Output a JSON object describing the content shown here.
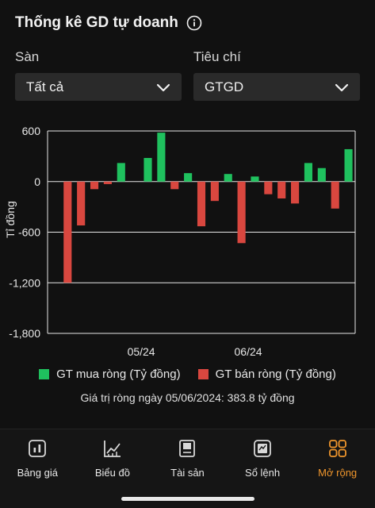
{
  "header": {
    "title": "Thống kê GD tự doanh"
  },
  "filters": {
    "exchange_label": "Sàn",
    "exchange_value": "Tất cả",
    "criteria_label": "Tiêu chí",
    "criteria_value": "GTGD"
  },
  "chart_data": {
    "type": "bar",
    "ylabel": "Tỉ đồng",
    "ylim": [
      -1800,
      600
    ],
    "yticks": [
      "600",
      "0",
      "-600",
      "-1,200",
      "-1,800"
    ],
    "ytick_values": [
      600,
      0,
      -600,
      -1200,
      -1800
    ],
    "xtick_labels": [
      {
        "label": "05/24",
        "index": 6.5
      },
      {
        "label": "06/24",
        "index": 14.5
      }
    ],
    "values": [
      0,
      -1200,
      -520,
      -90,
      -30,
      220,
      0,
      280,
      580,
      -90,
      100,
      -530,
      -230,
      90,
      -730,
      60,
      -150,
      -200,
      -260,
      220,
      160,
      -320,
      384
    ],
    "colors": {
      "positive": "#1fc15e",
      "negative": "#d9473f",
      "grid": "#e8e8e8"
    },
    "series": [
      {
        "name": "GT mua ròng (Tỷ đồng)",
        "color": "#1fc15e"
      },
      {
        "name": "GT bán ròng (Tỷ đồng)",
        "color": "#d9473f"
      }
    ]
  },
  "summary": "Giá trị ròng ngày 05/06/2024: 383.8 tỷ đồng",
  "nav": [
    {
      "label": "Bảng giá",
      "icon": "price-board-icon",
      "active": false
    },
    {
      "label": "Biểu đồ",
      "icon": "chart-icon",
      "active": false
    },
    {
      "label": "Tài sản",
      "icon": "assets-icon",
      "active": false
    },
    {
      "label": "Sổ lệnh",
      "icon": "order-book-icon",
      "active": false
    },
    {
      "label": "Mở rộng",
      "icon": "more-grid-icon",
      "active": true
    }
  ],
  "accent_color": "#f0962c"
}
